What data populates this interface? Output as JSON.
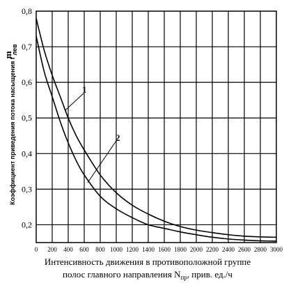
{
  "chart_data": {
    "type": "line",
    "title": "",
    "xlabel_line1": "Интенсивность движения в  противоположной группе",
    "xlabel_line2_prefix": "полос главного направления N",
    "xlabel_line2_sub": "пр",
    "xlabel_line2_suffix": ", прив. ед./ч",
    "ylabel_text": "Коэффициент приведения потока насыщения f",
    "ylabel_sub": "лев",
    "ylabel_sup": "m",
    "xlim": [
      0,
      3000
    ],
    "ylim": [
      0.15,
      0.8
    ],
    "x_ticks": [
      0,
      200,
      400,
      600,
      800,
      1000,
      1200,
      1400,
      1600,
      1800,
      2000,
      2200,
      2400,
      2600,
      2800,
      3000
    ],
    "x_tick_labels": [
      "0",
      "200",
      "400",
      "600",
      "800",
      "1000",
      "1200",
      "1400",
      "1600",
      "1800",
      "2000",
      "2200",
      "2400",
      "2600",
      "2800",
      "3000"
    ],
    "y_ticks": [
      0.2,
      0.3,
      0.4,
      0.5,
      0.6,
      0.7,
      0.8
    ],
    "y_tick_labels": [
      "0,2",
      "0,3",
      "0,4",
      "0,5",
      "0,6",
      "0,7",
      "0,8"
    ],
    "grid": true,
    "series": [
      {
        "label": "1",
        "x": [
          0,
          100,
          200,
          300,
          400,
          500,
          600,
          800,
          1000,
          1200,
          1400,
          1600,
          1800,
          2000,
          2200,
          2400,
          2600,
          2800,
          3000
        ],
        "y": [
          0.78,
          0.69,
          0.62,
          0.56,
          0.5,
          0.45,
          0.41,
          0.34,
          0.29,
          0.255,
          0.23,
          0.21,
          0.195,
          0.185,
          0.178,
          0.172,
          0.168,
          0.166,
          0.165
        ]
      },
      {
        "label": "2",
        "x": [
          0,
          100,
          200,
          300,
          400,
          500,
          600,
          800,
          1000,
          1200,
          1400,
          1600,
          1800,
          2000,
          2200,
          2400,
          2600,
          2800,
          3000
        ],
        "y": [
          0.73,
          0.63,
          0.56,
          0.49,
          0.43,
          0.38,
          0.34,
          0.28,
          0.245,
          0.22,
          0.2,
          0.19,
          0.18,
          0.172,
          0.165,
          0.16,
          0.157,
          0.155,
          0.154
        ]
      }
    ]
  }
}
